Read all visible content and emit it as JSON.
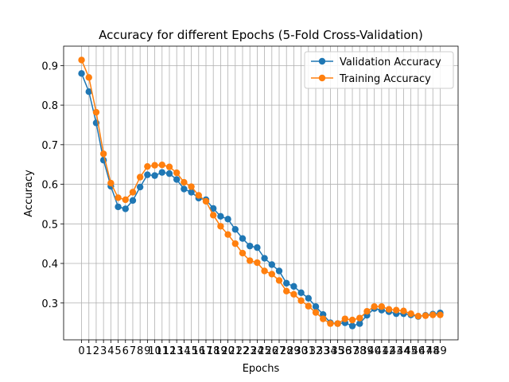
{
  "chart_data": {
    "type": "line",
    "title": "Accuracy for different Epochs (5-Fold Cross-Validation)",
    "xlabel": "Epochs",
    "ylabel": "Accuracy",
    "x": [
      0,
      1,
      2,
      3,
      4,
      5,
      6,
      7,
      8,
      9,
      10,
      11,
      12,
      13,
      14,
      15,
      16,
      17,
      18,
      19,
      20,
      21,
      22,
      23,
      24,
      25,
      26,
      27,
      28,
      29,
      30,
      31,
      32,
      33,
      34,
      35,
      36,
      37,
      38,
      39,
      40,
      41,
      42,
      43,
      44,
      45,
      46,
      47,
      48,
      49
    ],
    "xlim": [
      -2.45,
      51.45
    ],
    "ylim": [
      0.207,
      0.949
    ],
    "yticks": [
      0.3,
      0.4,
      0.5,
      0.6,
      0.7,
      0.8,
      0.9
    ],
    "grid": true,
    "legend_position": "top-right",
    "series": [
      {
        "name": "Validation Accuracy",
        "color": "#1f77b4",
        "marker": "circle",
        "values": [
          0.88,
          0.834,
          0.755,
          0.661,
          0.595,
          0.543,
          0.538,
          0.559,
          0.593,
          0.624,
          0.622,
          0.63,
          0.627,
          0.612,
          0.588,
          0.58,
          0.565,
          0.561,
          0.539,
          0.519,
          0.512,
          0.486,
          0.463,
          0.444,
          0.44,
          0.413,
          0.397,
          0.381,
          0.35,
          0.342,
          0.326,
          0.312,
          0.291,
          0.271,
          0.25,
          0.248,
          0.25,
          0.242,
          0.248,
          0.269,
          0.286,
          0.282,
          0.278,
          0.273,
          0.273,
          0.27,
          0.266,
          0.269,
          0.272,
          0.275
        ]
      },
      {
        "name": "Training Accuracy",
        "color": "#ff7f0e",
        "marker": "circle",
        "values": [
          0.914,
          0.87,
          0.782,
          0.677,
          0.603,
          0.566,
          0.561,
          0.58,
          0.618,
          0.645,
          0.648,
          0.649,
          0.644,
          0.629,
          0.605,
          0.594,
          0.572,
          0.557,
          0.522,
          0.494,
          0.473,
          0.45,
          0.426,
          0.407,
          0.402,
          0.381,
          0.373,
          0.357,
          0.33,
          0.322,
          0.306,
          0.292,
          0.276,
          0.26,
          0.248,
          0.248,
          0.26,
          0.257,
          0.262,
          0.279,
          0.291,
          0.291,
          0.284,
          0.282,
          0.28,
          0.273,
          0.267,
          0.268,
          0.27,
          0.27
        ]
      }
    ]
  }
}
